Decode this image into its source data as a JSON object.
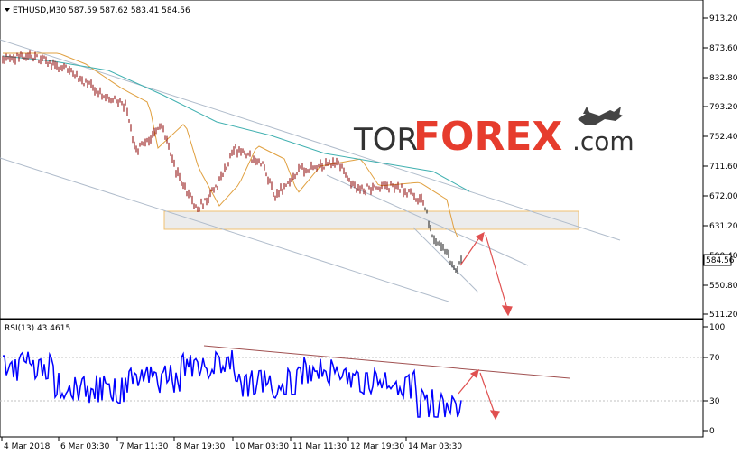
{
  "main_panel": {
    "symbol_info": "ETHUSD,M30  587.59 587.62 583.41 584.56",
    "current_price": "584.56",
    "price_ticks": [
      "913.20",
      "873.60",
      "832.80",
      "793.20",
      "752.40",
      "711.60",
      "672.00",
      "631.20",
      "590.40",
      "550.80",
      "511.20"
    ]
  },
  "rsi_panel": {
    "label": "RSI(13) 43.4615",
    "levels": [
      "100",
      "70",
      "30",
      "0"
    ]
  },
  "time_axis": {
    "labels": [
      "4 Mar 2018",
      "6 Mar 03:30",
      "7 Mar 11:30",
      "8 Mar 19:30",
      "10 Mar 03:30",
      "11 Mar 11:30",
      "12 Mar 19:30",
      "14 Mar 03:30"
    ]
  },
  "watermark": {
    "text_tor": "TOR",
    "text_forex": "FOREX",
    "text_com": ".com"
  },
  "colors": {
    "price_line": "#8b0000",
    "rsi_line": "#0000ff",
    "ma_fast": "#e0a040",
    "ma_slow": "#40b0b0",
    "channel": "#a8b8c8",
    "zone_fill": "#ececec",
    "zone_border": "#f0c070",
    "arrow": "#e05050",
    "rsi_trend": "#a05050",
    "watermark_red": "#e63c2d",
    "watermark_dark": "#333333"
  },
  "chart_data": {
    "type": "line",
    "price_ylim": [
      511.2,
      913.2
    ],
    "rsi_ylim": [
      0,
      100
    ]
  }
}
